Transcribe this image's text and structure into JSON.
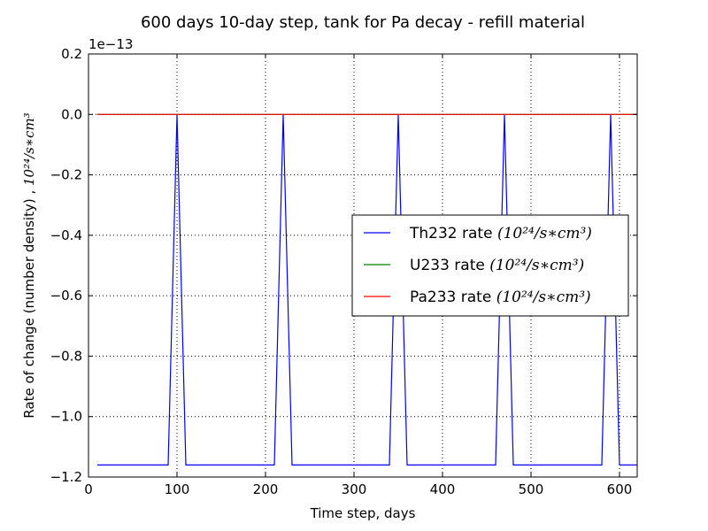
{
  "chart_data": {
    "type": "line",
    "title": "600 days 10-day step, tank for Pa decay - refill material",
    "xlabel": "Time step, days",
    "ylabel": "Rate of change (number density) , ",
    "ylabel_unit": "10²⁴/s∗cm³",
    "offset_text": "1e−13",
    "xlim": [
      0,
      620
    ],
    "ylim": [
      -1.2,
      0.2
    ],
    "xticks": [
      0,
      100,
      200,
      300,
      400,
      500,
      600
    ],
    "xtick_labels": [
      "0",
      "100",
      "200",
      "300",
      "400",
      "500",
      "600"
    ],
    "yticks": [
      0.2,
      0.0,
      -0.2,
      -0.4,
      -0.6,
      -0.8,
      -1.0,
      -1.2
    ],
    "ytick_labels": [
      "0.2",
      "0.0",
      "−0.2",
      "−0.4",
      "−0.6",
      "−0.8",
      "−1.0",
      "−1.2"
    ],
    "grid": true,
    "legend_position": "center-right",
    "series": [
      {
        "name": "Th232 rate",
        "unit": "(10²⁴/s∗cm³)",
        "color": "#0000ff",
        "x": [
          10,
          90,
          100,
          110,
          210,
          220,
          230,
          340,
          350,
          360,
          460,
          470,
          480,
          580,
          590,
          600,
          620
        ],
        "y": [
          -1.16,
          -1.16,
          0.0,
          -1.16,
          -1.16,
          0.0,
          -1.16,
          -1.16,
          0.0,
          -1.16,
          -1.16,
          0.0,
          -1.16,
          -1.16,
          0.0,
          -1.16,
          -1.16
        ]
      },
      {
        "name": "U233 rate",
        "unit": "(10²⁴/s∗cm³)",
        "color": "#008000",
        "x": [
          10,
          620
        ],
        "y": [
          0.0,
          0.0
        ]
      },
      {
        "name": "Pa233 rate",
        "unit": "(10²⁴/s∗cm³)",
        "color": "#ff0000",
        "x": [
          10,
          620
        ],
        "y": [
          0.0,
          0.0
        ]
      }
    ]
  }
}
